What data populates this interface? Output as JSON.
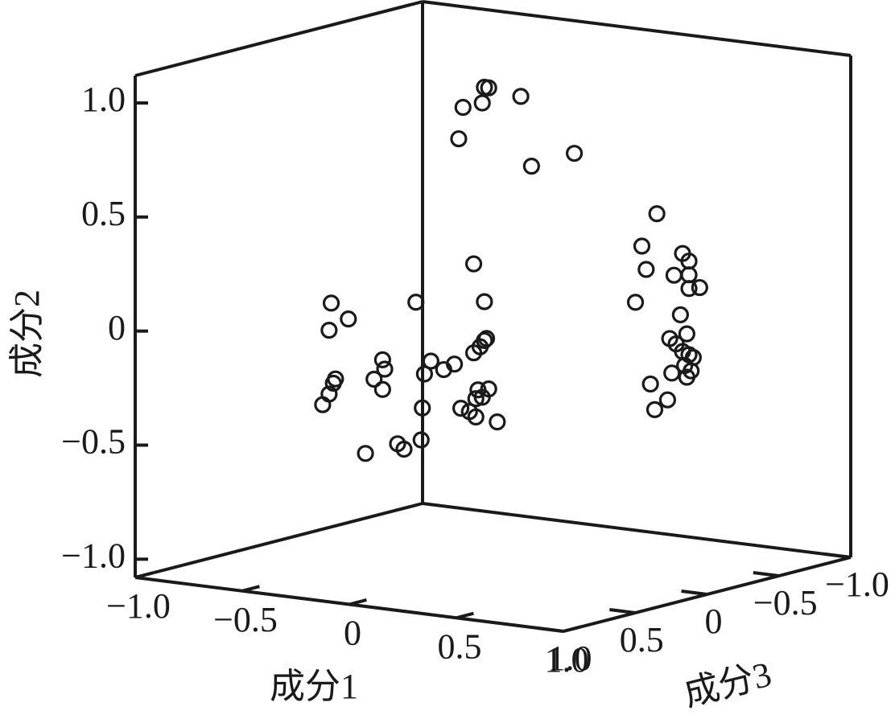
{
  "chart_data": {
    "type": "scatter3d",
    "x_label": "成分1",
    "y_label": "成分2",
    "z_label": "成分3",
    "color": "#1a1a1a",
    "xlim": [
      -1,
      1
    ],
    "ylim": [
      -1.08,
      1.12
    ],
    "zlim": [
      -1,
      1
    ],
    "xticks": [
      {
        "value": -1,
        "label": "−1.0"
      },
      {
        "value": -0.5,
        "label": "−0.5"
      },
      0,
      0.5,
      {
        "value": 1,
        "label": "1.0"
      }
    ],
    "yticks": [
      {
        "value": -1,
        "label": "−1.0"
      },
      {
        "value": -0.5,
        "label": "−0.5"
      },
      0,
      0.5,
      {
        "value": 1,
        "label": "1.0"
      }
    ],
    "zticks": [
      {
        "value": -1,
        "label": "−1.0"
      },
      {
        "value": -0.5,
        "label": "−0.5"
      },
      0,
      0.5,
      {
        "value": 1,
        "label": "1.0"
      }
    ],
    "x": [
      -0.04,
      -0.02,
      -0.14,
      -0.05,
      0.13,
      -0.16,
      0.18,
      0.38,
      0.43,
      0.36,
      0.38,
      0.55,
      0.58,
      0.51,
      0.58,
      0.63,
      0.33,
      0.58,
      0.54,
      0.57,
      0.49,
      0.52,
      0.55,
      0.58,
      0.6,
      0.56,
      0.59,
      0.57,
      0.5,
      0.4,
      0.48,
      0.42,
      -0.09,
      -0.04,
      -0.36,
      -0.04,
      -0.03,
      -0.06,
      -0.09,
      -0.29,
      -0.18,
      -0.23,
      -0.32,
      -0.07,
      -0.02,
      -0.05,
      -0.08,
      -0.33,
      -0.15,
      -0.11,
      -0.08,
      0.02,
      -0.42,
      -0.43,
      -0.34,
      -0.18,
      -0.17,
      -0.22,
      -0.18,
      -0.4,
      -0.41,
      -0.43,
      -0.46,
      0.0,
      -0.11,
      -0.08,
      -0.26
    ],
    "y": [
      1.02,
      1.02,
      0.92,
      0.95,
      1.0,
      0.78,
      0.7,
      0.78,
      0.44,
      0.29,
      0.19,
      0.28,
      0.25,
      0.18,
      0.19,
      0.14,
      0.04,
      0.13,
      0.01,
      -0.07,
      -0.1,
      -0.12,
      -0.15,
      -0.16,
      -0.17,
      -0.21,
      -0.23,
      -0.26,
      -0.25,
      -0.31,
      -0.37,
      -0.42,
      0.24,
      0.08,
      0.04,
      -0.09,
      -0.08,
      -0.12,
      -0.15,
      -0.21,
      -0.21,
      -0.24,
      -0.27,
      -0.31,
      -0.3,
      -0.34,
      -0.35,
      -0.42,
      -0.4,
      -0.41,
      -0.43,
      -0.44,
      0.11,
      -0.01,
      0.05,
      -0.11,
      -0.15,
      -0.2,
      -0.24,
      -0.22,
      -0.24,
      -0.29,
      -0.34,
      -0.44,
      -0.47,
      -0.49,
      -0.53
    ],
    "z": [
      0,
      0,
      0,
      0,
      0,
      0,
      0,
      0,
      -0.5,
      -0.5,
      -0.5,
      -0.5,
      -0.5,
      -0.5,
      -0.5,
      -0.5,
      -0.5,
      -0.5,
      -0.5,
      -0.5,
      -0.5,
      -0.5,
      -0.5,
      -0.5,
      -0.5,
      -0.5,
      -0.5,
      -0.5,
      -0.5,
      -0.5,
      -0.5,
      -0.5,
      0,
      0,
      0,
      0,
      0,
      0,
      0,
      0,
      0,
      0,
      0,
      0,
      0,
      0,
      0,
      0,
      0,
      0,
      0,
      0,
      0.5,
      0.5,
      0.5,
      0.5,
      0.5,
      0.5,
      0.5,
      0.5,
      0.5,
      0.5,
      0.5,
      0.5,
      0.5,
      0.5,
      0.5
    ]
  }
}
